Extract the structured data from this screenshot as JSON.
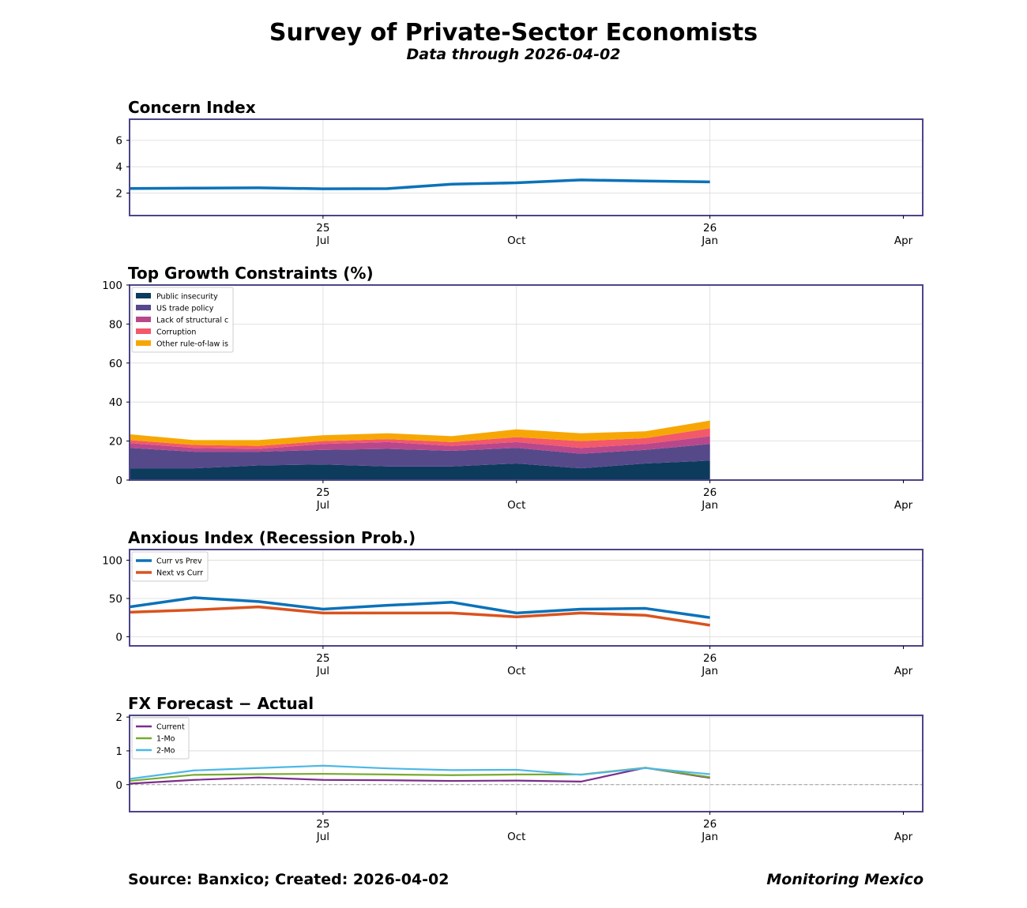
{
  "header": {
    "title": "Survey of Private-Sector Economists",
    "subtitle": "Data through 2026-04-02"
  },
  "footer": {
    "source": "Source: Banxico; Created: 2026-04-02",
    "brand": "Monitoring Mexico"
  },
  "colors": {
    "frame": "#4b4589",
    "grid": "#d9d9d9",
    "concern": "#0b72b9",
    "public_insecurity": "#0d3b5c",
    "us_trade_policy": "#56498a",
    "lack_structural": "#b8488c",
    "corruption": "#f2596a",
    "other_rule_of_law": "#f7a705",
    "curr_vs_prev": "#0b72b9",
    "next_vs_curr": "#d9531e",
    "fx_current": "#7b2d8b",
    "fx_1mo": "#77ab2f",
    "fx_2mo": "#4db8e6"
  },
  "chart_data": [
    {
      "id": "concern",
      "type": "line",
      "title": "Concern Index",
      "x_months": [
        0,
        1,
        2,
        3,
        4,
        5,
        6,
        7,
        8,
        9
      ],
      "x_domain": [
        0,
        12.3
      ],
      "x_ticks": [
        {
          "x": 3,
          "top": "25",
          "bottom": "Jul"
        },
        {
          "x": 6,
          "top": "",
          "bottom": "Oct"
        },
        {
          "x": 9,
          "top": "26",
          "bottom": "Jan"
        },
        {
          "x": 12,
          "top": "",
          "bottom": "Apr"
        }
      ],
      "ylim": [
        0.3,
        7.6
      ],
      "yticks": [
        2,
        4,
        6
      ],
      "series": [
        {
          "name": "Concern Index",
          "color_key": "concern",
          "values": [
            2.35,
            2.38,
            2.4,
            2.33,
            2.34,
            2.68,
            2.78,
            3.0,
            2.92,
            2.85
          ]
        }
      ]
    },
    {
      "id": "constraints",
      "type": "area",
      "title": "Top Growth Constraints (%)",
      "x_months": [
        0,
        1,
        2,
        3,
        4,
        5,
        6,
        7,
        8,
        9
      ],
      "x_domain": [
        0,
        12.3
      ],
      "x_ticks": [
        {
          "x": 3,
          "top": "25",
          "bottom": "Jul"
        },
        {
          "x": 6,
          "top": "",
          "bottom": "Oct"
        },
        {
          "x": 9,
          "top": "26",
          "bottom": "Jan"
        },
        {
          "x": 12,
          "top": "",
          "bottom": "Apr"
        }
      ],
      "ylim": [
        0,
        100
      ],
      "yticks": [
        0,
        20,
        40,
        60,
        80,
        100
      ],
      "legend_position": "top-left",
      "series": [
        {
          "name": "Public insecurity",
          "color_key": "public_insecurity",
          "values": [
            6,
            6,
            7.5,
            8,
            7,
            7,
            8.5,
            6,
            8.5,
            10
          ]
        },
        {
          "name": "US trade policy",
          "color_key": "us_trade_policy",
          "values": [
            10.5,
            8.5,
            7,
            7.5,
            9,
            8,
            8,
            7.5,
            7,
            8.5
          ]
        },
        {
          "name": "Lack of structural c",
          "color_key": "lack_structural",
          "values": [
            2.5,
            2,
            1.5,
            3,
            3.5,
            2.5,
            3,
            3,
            3,
            4
          ]
        },
        {
          "name": "Corruption",
          "color_key": "corruption",
          "values": [
            1.5,
            1.5,
            1.5,
            1.5,
            1.5,
            2,
            2.5,
            3.5,
            3,
            4
          ]
        },
        {
          "name": "Other rule-of-law is",
          "color_key": "other_rule_of_law",
          "values": [
            3,
            2.5,
            3,
            3,
            3,
            3,
            4,
            4,
            3.5,
            4
          ]
        }
      ]
    },
    {
      "id": "anxious",
      "type": "line",
      "title": "Anxious Index (Recession Prob.)",
      "x_months": [
        0,
        1,
        2,
        3,
        4,
        5,
        6,
        7,
        8,
        9
      ],
      "x_domain": [
        0,
        12.3
      ],
      "x_ticks": [
        {
          "x": 3,
          "top": "25",
          "bottom": "Jul"
        },
        {
          "x": 6,
          "top": "",
          "bottom": "Oct"
        },
        {
          "x": 9,
          "top": "26",
          "bottom": "Jan"
        },
        {
          "x": 12,
          "top": "",
          "bottom": "Apr"
        }
      ],
      "ylim": [
        -12,
        114
      ],
      "yticks": [
        0,
        50,
        100
      ],
      "legend_position": "top-left",
      "series": [
        {
          "name": "Curr vs Prev",
          "color_key": "curr_vs_prev",
          "values": [
            39,
            51,
            46,
            36,
            41,
            45,
            31,
            36,
            37,
            25
          ]
        },
        {
          "name": "Next vs Curr",
          "color_key": "next_vs_curr",
          "values": [
            32,
            35,
            39,
            31,
            31,
            31,
            26,
            31,
            28,
            15
          ]
        }
      ]
    },
    {
      "id": "fx",
      "type": "line",
      "title": "FX Forecast − Actual",
      "x_months": [
        0,
        1,
        2,
        3,
        4,
        5,
        6,
        7,
        8,
        9
      ],
      "x_domain": [
        0,
        12.3
      ],
      "x_ticks": [
        {
          "x": 3,
          "top": "25",
          "bottom": "Jul"
        },
        {
          "x": 6,
          "top": "",
          "bottom": "Oct"
        },
        {
          "x": 9,
          "top": "26",
          "bottom": "Jan"
        },
        {
          "x": 12,
          "top": "",
          "bottom": "Apr"
        }
      ],
      "ylim": [
        -0.8,
        2.05
      ],
      "yticks": [
        0,
        1,
        2
      ],
      "zero_line": true,
      "legend_position": "top-left",
      "series": [
        {
          "name": "Current",
          "color_key": "fx_current",
          "values": [
            0.03,
            0.14,
            0.21,
            0.14,
            0.13,
            0.11,
            0.12,
            0.09,
            0.5,
            0.2
          ]
        },
        {
          "name": "1-Mo",
          "color_key": "fx_1mo",
          "values": [
            0.11,
            0.29,
            0.31,
            0.32,
            0.3,
            0.28,
            0.3,
            0.3,
            0.5,
            0.22
          ]
        },
        {
          "name": "2-Mo",
          "color_key": "fx_2mo",
          "values": [
            0.17,
            0.42,
            0.49,
            0.56,
            0.48,
            0.43,
            0.44,
            0.29,
            0.49,
            0.31
          ]
        }
      ]
    }
  ]
}
